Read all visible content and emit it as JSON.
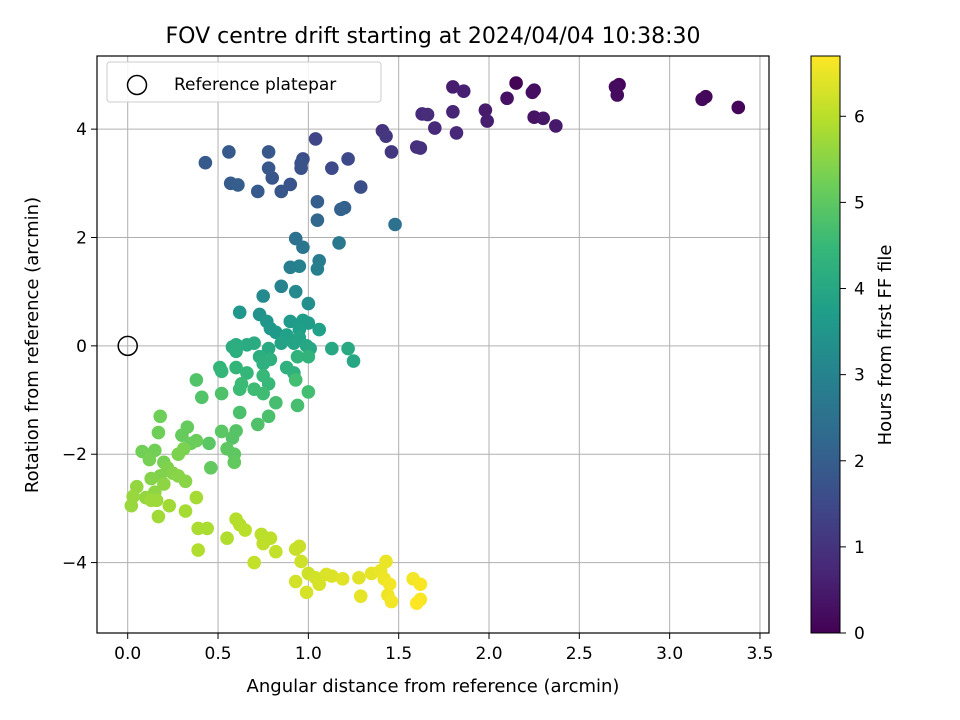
{
  "chart_data": {
    "type": "scatter",
    "title": "FOV centre drift starting at 2024/04/04 10:38:30",
    "xlabel": "Angular distance from reference (arcmin)",
    "ylabel": "Rotation from reference (arcmin)",
    "xlim": [
      -0.17,
      3.55
    ],
    "ylim": [
      -5.3,
      5.35
    ],
    "xticks": [
      0.0,
      0.5,
      1.0,
      1.5,
      2.0,
      2.5,
      3.0,
      3.5
    ],
    "xtick_labels": [
      "0.0",
      "0.5",
      "1.0",
      "1.5",
      "2.0",
      "2.5",
      "3.0",
      "3.5"
    ],
    "yticks": [
      -4,
      -2,
      0,
      2,
      4
    ],
    "ytick_labels": [
      "−4",
      "−2",
      "0",
      "2",
      "4"
    ],
    "grid": true,
    "legend": {
      "location": "upper-left",
      "entries": [
        "Reference platepar"
      ]
    },
    "reference_point": {
      "x": 0.0,
      "y": 0.0,
      "label": "Reference platepar"
    },
    "colorbar": {
      "label": "Hours from first FF file",
      "range": [
        0,
        6.7
      ],
      "ticks": [
        0,
        1,
        2,
        3,
        4,
        5,
        6
      ],
      "tick_labels": [
        "0",
        "1",
        "2",
        "3",
        "4",
        "5",
        "6"
      ],
      "colormap": "viridis"
    },
    "colormap_stops": [
      "#440154",
      "#482878",
      "#3e4989",
      "#31688e",
      "#26828e",
      "#1f9e89",
      "#35b779",
      "#6ece58",
      "#b5de2b",
      "#fde725"
    ],
    "series": [
      {
        "values": [
          {
            "x": 2.15,
            "y": 4.85,
            "c": 0.05
          },
          {
            "x": 2.72,
            "y": 4.82,
            "c": 0.1
          },
          {
            "x": 3.38,
            "y": 4.4,
            "c": 0.1
          },
          {
            "x": 3.2,
            "y": 4.6,
            "c": 0.12
          },
          {
            "x": 3.18,
            "y": 4.55,
            "c": 0.15
          },
          {
            "x": 2.71,
            "y": 4.63,
            "c": 0.2
          },
          {
            "x": 2.7,
            "y": 4.78,
            "c": 0.2
          },
          {
            "x": 2.25,
            "y": 4.72,
            "c": 0.22
          },
          {
            "x": 2.24,
            "y": 4.68,
            "c": 0.25
          },
          {
            "x": 2.1,
            "y": 4.57,
            "c": 0.3
          },
          {
            "x": 2.25,
            "y": 4.22,
            "c": 0.35
          },
          {
            "x": 2.3,
            "y": 4.2,
            "c": 0.4
          },
          {
            "x": 2.37,
            "y": 4.06,
            "c": 0.45
          },
          {
            "x": 1.98,
            "y": 4.35,
            "c": 0.5
          },
          {
            "x": 1.99,
            "y": 4.15,
            "c": 0.55
          },
          {
            "x": 1.8,
            "y": 4.78,
            "c": 0.55
          },
          {
            "x": 1.86,
            "y": 4.7,
            "c": 0.6
          },
          {
            "x": 1.8,
            "y": 4.32,
            "c": 0.7
          },
          {
            "x": 1.82,
            "y": 3.93,
            "c": 0.75
          },
          {
            "x": 1.7,
            "y": 4.02,
            "c": 0.8
          },
          {
            "x": 1.63,
            "y": 4.28,
            "c": 0.8
          },
          {
            "x": 1.66,
            "y": 4.27,
            "c": 0.85
          },
          {
            "x": 1.6,
            "y": 3.67,
            "c": 0.9
          },
          {
            "x": 1.62,
            "y": 3.65,
            "c": 0.95
          },
          {
            "x": 1.41,
            "y": 3.97,
            "c": 1.0
          },
          {
            "x": 1.43,
            "y": 3.87,
            "c": 1.05
          },
          {
            "x": 1.46,
            "y": 3.58,
            "c": 1.1
          },
          {
            "x": 1.04,
            "y": 3.82,
            "c": 1.4
          },
          {
            "x": 1.22,
            "y": 3.45,
            "c": 1.5
          },
          {
            "x": 1.13,
            "y": 3.28,
            "c": 1.5
          },
          {
            "x": 1.29,
            "y": 2.93,
            "c": 1.6
          },
          {
            "x": 0.97,
            "y": 3.45,
            "c": 1.6
          },
          {
            "x": 0.96,
            "y": 3.28,
            "c": 1.7
          },
          {
            "x": 0.96,
            "y": 3.37,
            "c": 1.7
          },
          {
            "x": 0.9,
            "y": 2.98,
            "c": 1.75
          },
          {
            "x": 0.85,
            "y": 2.85,
            "c": 1.8
          },
          {
            "x": 0.8,
            "y": 3.1,
            "c": 1.8
          },
          {
            "x": 0.78,
            "y": 3.28,
            "c": 1.85
          },
          {
            "x": 0.72,
            "y": 2.85,
            "c": 1.9
          },
          {
            "x": 0.78,
            "y": 3.58,
            "c": 1.85
          },
          {
            "x": 0.56,
            "y": 3.58,
            "c": 1.9
          },
          {
            "x": 0.43,
            "y": 3.38,
            "c": 1.9
          },
          {
            "x": 0.57,
            "y": 3.0,
            "c": 1.95
          },
          {
            "x": 0.61,
            "y": 2.97,
            "c": 2.0
          },
          {
            "x": 1.05,
            "y": 2.66,
            "c": 2.0
          },
          {
            "x": 1.2,
            "y": 2.55,
            "c": 2.05
          },
          {
            "x": 1.18,
            "y": 2.52,
            "c": 2.1
          },
          {
            "x": 1.05,
            "y": 2.32,
            "c": 2.2
          },
          {
            "x": 1.48,
            "y": 2.24,
            "c": 2.5
          },
          {
            "x": 0.93,
            "y": 1.98,
            "c": 2.5
          },
          {
            "x": 0.97,
            "y": 1.82,
            "c": 2.6
          },
          {
            "x": 1.17,
            "y": 1.9,
            "c": 2.7
          },
          {
            "x": 1.06,
            "y": 1.57,
            "c": 2.8
          },
          {
            "x": 1.05,
            "y": 1.42,
            "c": 2.9
          },
          {
            "x": 0.9,
            "y": 1.45,
            "c": 2.85
          },
          {
            "x": 0.95,
            "y": 1.47,
            "c": 2.95
          },
          {
            "x": 0.85,
            "y": 1.1,
            "c": 3.0
          },
          {
            "x": 0.93,
            "y": 1.0,
            "c": 3.2
          },
          {
            "x": 0.75,
            "y": 0.92,
            "c": 3.2
          },
          {
            "x": 1.0,
            "y": 0.78,
            "c": 3.3
          },
          {
            "x": 0.73,
            "y": 0.58,
            "c": 3.4
          },
          {
            "x": 0.62,
            "y": 0.62,
            "c": 3.5
          },
          {
            "x": 0.77,
            "y": 0.45,
            "c": 3.5
          },
          {
            "x": 0.79,
            "y": 0.32,
            "c": 3.55
          },
          {
            "x": 0.82,
            "y": 0.25,
            "c": 3.6
          },
          {
            "x": 0.9,
            "y": 0.45,
            "c": 3.65
          },
          {
            "x": 0.97,
            "y": 0.47,
            "c": 3.7
          },
          {
            "x": 1.0,
            "y": 0.42,
            "c": 3.7
          },
          {
            "x": 0.95,
            "y": 0.3,
            "c": 3.75
          },
          {
            "x": 1.06,
            "y": 0.3,
            "c": 3.8
          },
          {
            "x": 0.88,
            "y": 0.2,
            "c": 3.8
          },
          {
            "x": 0.85,
            "y": 0.05,
            "c": 3.85
          },
          {
            "x": 0.92,
            "y": 0.05,
            "c": 3.9
          },
          {
            "x": 0.95,
            "y": 0.15,
            "c": 3.9
          },
          {
            "x": 0.99,
            "y": 0.0,
            "c": 3.95
          },
          {
            "x": 1.01,
            "y": -0.05,
            "c": 4.0
          },
          {
            "x": 1.13,
            "y": -0.05,
            "c": 4.0
          },
          {
            "x": 1.22,
            "y": -0.05,
            "c": 4.05
          },
          {
            "x": 0.78,
            "y": -0.05,
            "c": 4.05
          },
          {
            "x": 0.7,
            "y": 0.05,
            "c": 4.1
          },
          {
            "x": 0.66,
            "y": 0.02,
            "c": 4.1
          },
          {
            "x": 0.6,
            "y": 0.02,
            "c": 4.15
          },
          {
            "x": 0.58,
            "y": -0.02,
            "c": 4.15
          },
          {
            "x": 0.6,
            "y": -0.1,
            "c": 4.2
          },
          {
            "x": 0.73,
            "y": -0.2,
            "c": 4.2
          },
          {
            "x": 0.79,
            "y": -0.25,
            "c": 4.25
          },
          {
            "x": 0.75,
            "y": -0.33,
            "c": 4.25
          },
          {
            "x": 0.88,
            "y": -0.4,
            "c": 4.3
          },
          {
            "x": 0.92,
            "y": -0.5,
            "c": 4.3
          },
          {
            "x": 0.94,
            "y": -0.2,
            "c": 4.35
          },
          {
            "x": 1.0,
            "y": -0.2,
            "c": 4.35
          },
          {
            "x": 1.25,
            "y": -0.28,
            "c": 4.0
          },
          {
            "x": 0.6,
            "y": -0.4,
            "c": 4.4
          },
          {
            "x": 0.51,
            "y": -0.4,
            "c": 4.4
          },
          {
            "x": 0.52,
            "y": -0.47,
            "c": 4.45
          },
          {
            "x": 0.66,
            "y": -0.5,
            "c": 4.45
          },
          {
            "x": 0.75,
            "y": -0.55,
            "c": 4.5
          },
          {
            "x": 0.78,
            "y": -0.7,
            "c": 4.5
          },
          {
            "x": 0.63,
            "y": -0.7,
            "c": 4.55
          },
          {
            "x": 0.62,
            "y": -0.8,
            "c": 4.55
          },
          {
            "x": 0.7,
            "y": -0.8,
            "c": 4.6
          },
          {
            "x": 0.75,
            "y": -0.88,
            "c": 4.6
          },
          {
            "x": 0.93,
            "y": -0.63,
            "c": 4.65
          },
          {
            "x": 1.0,
            "y": -0.85,
            "c": 4.65
          },
          {
            "x": 0.82,
            "y": -1.05,
            "c": 4.7
          },
          {
            "x": 0.94,
            "y": -1.1,
            "c": 4.7
          },
          {
            "x": 0.78,
            "y": -1.3,
            "c": 4.75
          },
          {
            "x": 0.62,
            "y": -1.23,
            "c": 4.75
          },
          {
            "x": 0.72,
            "y": -1.45,
            "c": 4.8
          },
          {
            "x": 0.52,
            "y": -0.88,
            "c": 4.8
          },
          {
            "x": 0.38,
            "y": -0.63,
            "c": 4.85
          },
          {
            "x": 0.41,
            "y": -0.95,
            "c": 4.85
          },
          {
            "x": 0.6,
            "y": -1.57,
            "c": 4.9
          },
          {
            "x": 0.58,
            "y": -1.7,
            "c": 4.9
          },
          {
            "x": 0.52,
            "y": -1.58,
            "c": 4.95
          },
          {
            "x": 0.45,
            "y": -1.8,
            "c": 4.95
          },
          {
            "x": 0.55,
            "y": -1.9,
            "c": 5.0
          },
          {
            "x": 0.59,
            "y": -2.0,
            "c": 5.0
          },
          {
            "x": 0.59,
            "y": -2.15,
            "c": 5.05
          },
          {
            "x": 0.46,
            "y": -2.25,
            "c": 5.05
          },
          {
            "x": 0.33,
            "y": -1.5,
            "c": 5.1
          },
          {
            "x": 0.3,
            "y": -1.65,
            "c": 5.1
          },
          {
            "x": 0.35,
            "y": -1.8,
            "c": 5.15
          },
          {
            "x": 0.38,
            "y": -1.75,
            "c": 5.15
          },
          {
            "x": 0.17,
            "y": -1.6,
            "c": 5.2
          },
          {
            "x": 0.18,
            "y": -1.3,
            "c": 5.2
          },
          {
            "x": 0.15,
            "y": -1.93,
            "c": 5.25
          },
          {
            "x": 0.08,
            "y": -1.95,
            "c": 5.25
          },
          {
            "x": 0.12,
            "y": -2.1,
            "c": 5.3
          },
          {
            "x": 0.2,
            "y": -2.15,
            "c": 5.3
          },
          {
            "x": 0.28,
            "y": -2.0,
            "c": 5.35
          },
          {
            "x": 0.31,
            "y": -1.9,
            "c": 5.35
          },
          {
            "x": 0.22,
            "y": -2.25,
            "c": 5.4
          },
          {
            "x": 0.18,
            "y": -2.4,
            "c": 5.4
          },
          {
            "x": 0.13,
            "y": -2.45,
            "c": 5.45
          },
          {
            "x": 0.25,
            "y": -2.35,
            "c": 5.45
          },
          {
            "x": 0.28,
            "y": -2.4,
            "c": 5.5
          },
          {
            "x": 0.32,
            "y": -2.5,
            "c": 5.5
          },
          {
            "x": 0.2,
            "y": -2.55,
            "c": 5.55
          },
          {
            "x": 0.15,
            "y": -2.7,
            "c": 5.55
          },
          {
            "x": 0.1,
            "y": -2.8,
            "c": 5.6
          },
          {
            "x": 0.05,
            "y": -2.6,
            "c": 5.6
          },
          {
            "x": 0.03,
            "y": -2.78,
            "c": 5.65
          },
          {
            "x": 0.02,
            "y": -2.95,
            "c": 5.65
          },
          {
            "x": 0.13,
            "y": -2.85,
            "c": 5.7
          },
          {
            "x": 0.16,
            "y": -2.85,
            "c": 5.7
          },
          {
            "x": 0.23,
            "y": -2.95,
            "c": 5.75
          },
          {
            "x": 0.17,
            "y": -3.15,
            "c": 5.75
          },
          {
            "x": 0.32,
            "y": -3.05,
            "c": 5.8
          },
          {
            "x": 0.38,
            "y": -2.8,
            "c": 5.8
          },
          {
            "x": 0.39,
            "y": -3.37,
            "c": 5.85
          },
          {
            "x": 0.44,
            "y": -3.37,
            "c": 5.85
          },
          {
            "x": 0.39,
            "y": -3.77,
            "c": 5.9
          },
          {
            "x": 0.55,
            "y": -3.55,
            "c": 5.9
          },
          {
            "x": 0.6,
            "y": -3.2,
            "c": 5.95
          },
          {
            "x": 0.62,
            "y": -3.3,
            "c": 5.95
          },
          {
            "x": 0.65,
            "y": -3.4,
            "c": 6.0
          },
          {
            "x": 0.74,
            "y": -3.48,
            "c": 6.0
          },
          {
            "x": 0.75,
            "y": -3.65,
            "c": 6.05
          },
          {
            "x": 0.79,
            "y": -3.55,
            "c": 6.05
          },
          {
            "x": 0.82,
            "y": -3.8,
            "c": 6.1
          },
          {
            "x": 0.7,
            "y": -4.0,
            "c": 6.1
          },
          {
            "x": 0.93,
            "y": -3.75,
            "c": 6.15
          },
          {
            "x": 0.95,
            "y": -3.7,
            "c": 6.15
          },
          {
            "x": 0.96,
            "y": -3.98,
            "c": 6.2
          },
          {
            "x": 1.0,
            "y": -4.2,
            "c": 6.2
          },
          {
            "x": 1.04,
            "y": -4.28,
            "c": 6.25
          },
          {
            "x": 0.93,
            "y": -4.35,
            "c": 6.25
          },
          {
            "x": 0.99,
            "y": -4.55,
            "c": 6.3
          },
          {
            "x": 1.06,
            "y": -4.4,
            "c": 6.3
          },
          {
            "x": 1.1,
            "y": -4.22,
            "c": 6.35
          },
          {
            "x": 1.13,
            "y": -4.25,
            "c": 6.35
          },
          {
            "x": 1.19,
            "y": -4.3,
            "c": 6.4
          },
          {
            "x": 1.28,
            "y": -4.28,
            "c": 6.4
          },
          {
            "x": 1.29,
            "y": -4.62,
            "c": 6.45
          },
          {
            "x": 1.35,
            "y": -4.2,
            "c": 6.45
          },
          {
            "x": 1.4,
            "y": -4.15,
            "c": 6.5
          },
          {
            "x": 1.43,
            "y": -3.98,
            "c": 6.5
          },
          {
            "x": 1.42,
            "y": -4.3,
            "c": 6.55
          },
          {
            "x": 1.44,
            "y": -4.6,
            "c": 6.55
          },
          {
            "x": 1.46,
            "y": -4.72,
            "c": 6.6
          },
          {
            "x": 1.45,
            "y": -4.4,
            "c": 6.6
          },
          {
            "x": 1.58,
            "y": -4.3,
            "c": 6.6
          },
          {
            "x": 1.62,
            "y": -4.4,
            "c": 6.65
          },
          {
            "x": 1.62,
            "y": -4.68,
            "c": 6.65
          },
          {
            "x": 1.6,
            "y": -4.75,
            "c": 6.7
          }
        ]
      }
    ]
  }
}
